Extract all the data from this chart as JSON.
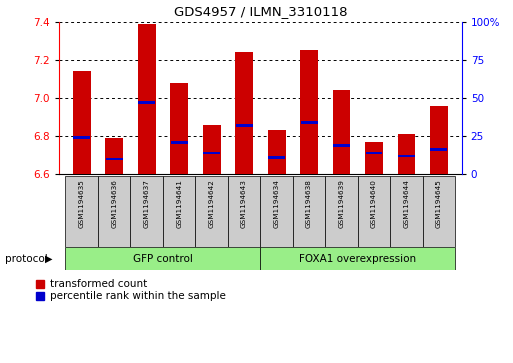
{
  "title": "GDS4957 / ILMN_3310118",
  "samples": [
    "GSM1194635",
    "GSM1194636",
    "GSM1194637",
    "GSM1194641",
    "GSM1194642",
    "GSM1194643",
    "GSM1194634",
    "GSM1194638",
    "GSM1194639",
    "GSM1194640",
    "GSM1194644",
    "GSM1194645"
  ],
  "transformed_count": [
    7.14,
    6.79,
    7.39,
    7.08,
    6.86,
    7.24,
    6.83,
    7.25,
    7.04,
    6.77,
    6.81,
    6.96
  ],
  "percentile_rank_pct": [
    24,
    10,
    47,
    21,
    14,
    32,
    11,
    34,
    19,
    14,
    12,
    16
  ],
  "ylim_left": [
    6.6,
    7.4
  ],
  "ylim_right": [
    0,
    100
  ],
  "yticks_left": [
    6.6,
    6.8,
    7.0,
    7.2,
    7.4
  ],
  "yticks_right": [
    0,
    25,
    50,
    75,
    100
  ],
  "ytick_labels_right": [
    "0",
    "25",
    "50",
    "75",
    "100%"
  ],
  "base_value": 6.6,
  "group1_label": "GFP control",
  "group2_label": "FOXA1 overexpression",
  "protocol_label": "protocol",
  "legend_red": "transformed count",
  "legend_blue": "percentile rank within the sample",
  "bar_color_red": "#cc0000",
  "bar_color_blue": "#0000cc",
  "group_bg_color": "#99ee88",
  "sample_bg_color": "#cccccc",
  "bar_width": 0.55,
  "grid_color": "#000000"
}
